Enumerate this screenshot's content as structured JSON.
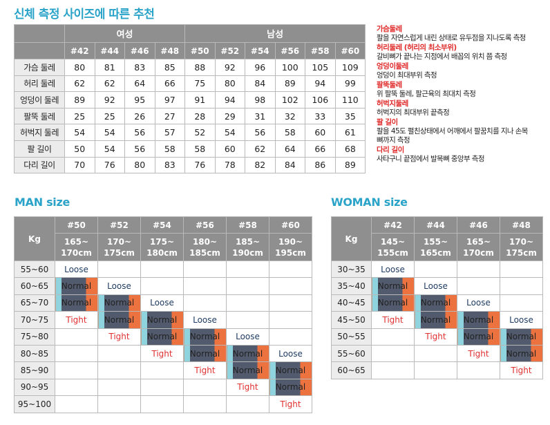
{
  "title_measure": "신체 측정 사이즈에 따른 추천",
  "measure": {
    "groups": [
      {
        "label": "여성"
      },
      {
        "label": "남성"
      }
    ],
    "women_sizes": [
      "#42",
      "#44",
      "#46",
      "#48"
    ],
    "men_sizes": [
      "#50",
      "#52",
      "#54",
      "#56",
      "#58",
      "#60"
    ],
    "rows": [
      {
        "label": "가슴 둘레",
        "values": [
          "80",
          "81",
          "83",
          "85",
          "88",
          "92",
          "96",
          "100",
          "105",
          "109"
        ]
      },
      {
        "label": "허리 둘레",
        "values": [
          "62",
          "62",
          "64",
          "66",
          "75",
          "80",
          "84",
          "89",
          "94",
          "99"
        ]
      },
      {
        "label": "엉덩이 둘레",
        "values": [
          "89",
          "92",
          "95",
          "97",
          "91",
          "94",
          "98",
          "102",
          "106",
          "110"
        ]
      },
      {
        "label": "팔뚝 둘레",
        "values": [
          "25",
          "25",
          "26",
          "27",
          "28",
          "29",
          "31",
          "32",
          "33",
          "35"
        ]
      },
      {
        "label": "허벅지 둘레",
        "values": [
          "54",
          "54",
          "56",
          "57",
          "52",
          "54",
          "56",
          "58",
          "60",
          "61"
        ]
      },
      {
        "label": "팔 길이",
        "values": [
          "50",
          "54",
          "56",
          "58",
          "58",
          "60",
          "62",
          "64",
          "66",
          "68"
        ]
      },
      {
        "label": "다리 길이",
        "values": [
          "70",
          "76",
          "80",
          "83",
          "76",
          "78",
          "82",
          "84",
          "86",
          "89"
        ]
      }
    ]
  },
  "notes": [
    {
      "title": "가슴둘레",
      "desc": "팔을 자연스럽게 내린 상태로 유두점을 지나도록 측정"
    },
    {
      "title": "허리둘레 (허리의 최소부위)",
      "desc": "갈비뼈가 끝나는 지점에서 배꼽의 위치 쯤 측정"
    },
    {
      "title": "엉덩이둘레",
      "desc": "엉덩이 최대부위 측정"
    },
    {
      "title": "팔뚝둘레",
      "desc": "위 팔뚝 둘레, 팔근육의 최대치 측정"
    },
    {
      "title": "허벅지둘레",
      "desc": "허벅지의 최대부위 끝측정"
    },
    {
      "title": "팔 길이",
      "desc": "팔을 45도 펼친상태에서 어깨에서 팔꿈치를 지나 손목\n뼈까지 측정"
    },
    {
      "title": "다리 길이",
      "desc": "사타구니 끝점에서 발목뼈 중앙부 측정"
    }
  ],
  "man": {
    "title": "MAN size",
    "kg_label": "Kg",
    "sizes": [
      {
        "size": "#50",
        "h1": "165~",
        "h2": "170cm"
      },
      {
        "size": "#52",
        "h1": "170~",
        "h2": "175cm"
      },
      {
        "size": "#54",
        "h1": "175~",
        "h2": "180cm"
      },
      {
        "size": "#56",
        "h1": "180~",
        "h2": "185cm"
      },
      {
        "size": "#58",
        "h1": "185~",
        "h2": "190cm"
      },
      {
        "size": "#60",
        "h1": "190~",
        "h2": "195cm"
      }
    ],
    "rows": [
      {
        "kg": "55~60",
        "fits": [
          "Loose",
          "",
          "",
          "",
          "",
          ""
        ]
      },
      {
        "kg": "60~65",
        "fits": [
          "Normal",
          "Loose",
          "",
          "",
          "",
          ""
        ]
      },
      {
        "kg": "65~70",
        "fits": [
          "Normal",
          "Normal",
          "Loose",
          "",
          "",
          ""
        ]
      },
      {
        "kg": "70~75",
        "fits": [
          "Tight",
          "Normal",
          "Normal",
          "Loose",
          "",
          ""
        ]
      },
      {
        "kg": "75~80",
        "fits": [
          "",
          "Tight",
          "Normal",
          "Normal",
          "Loose",
          ""
        ]
      },
      {
        "kg": "80~85",
        "fits": [
          "",
          "",
          "Tight",
          "Normal",
          "Normal",
          "Loose"
        ]
      },
      {
        "kg": "85~90",
        "fits": [
          "",
          "",
          "",
          "Tight",
          "Normal",
          "Normal"
        ]
      },
      {
        "kg": "90~95",
        "fits": [
          "",
          "",
          "",
          "",
          "Tight",
          "Normal"
        ]
      },
      {
        "kg": "95~100",
        "fits": [
          "",
          "",
          "",
          "",
          "",
          "Tight"
        ]
      }
    ]
  },
  "woman": {
    "title": "WOMAN size",
    "kg_label": "Kg",
    "sizes": [
      {
        "size": "#42",
        "h1": "145~",
        "h2": "155cm"
      },
      {
        "size": "#44",
        "h1": "155~",
        "h2": "165cm"
      },
      {
        "size": "#46",
        "h1": "165~",
        "h2": "170cm"
      },
      {
        "size": "#48",
        "h1": "170~",
        "h2": "175cm"
      }
    ],
    "rows": [
      {
        "kg": "30~35",
        "fits": [
          "Loose",
          "",
          "",
          ""
        ]
      },
      {
        "kg": "35~40",
        "fits": [
          "Normal",
          "Loose",
          "",
          ""
        ]
      },
      {
        "kg": "40~45",
        "fits": [
          "Normal",
          "Normal",
          "Loose",
          ""
        ]
      },
      {
        "kg": "45~50",
        "fits": [
          "Tight",
          "Normal",
          "Normal",
          "Loose"
        ]
      },
      {
        "kg": "50~55",
        "fits": [
          "",
          "Tight",
          "Normal",
          "Normal"
        ]
      },
      {
        "kg": "55~60",
        "fits": [
          "",
          "",
          "Tight",
          "Normal"
        ]
      },
      {
        "kg": "60~65",
        "fits": [
          "",
          "",
          "",
          "Tight"
        ]
      }
    ]
  },
  "colors": {
    "accent": "#2aa3c9",
    "header_gray": "#8f8f8f",
    "row_gray": "#ececec",
    "note_red": "#e02a2a",
    "tight_red": "#e03030",
    "loose_navy": "#1f3b64",
    "normal_cyan": "#8fd3de",
    "normal_slate": "#525a6d",
    "normal_orange": "#ec7340"
  }
}
